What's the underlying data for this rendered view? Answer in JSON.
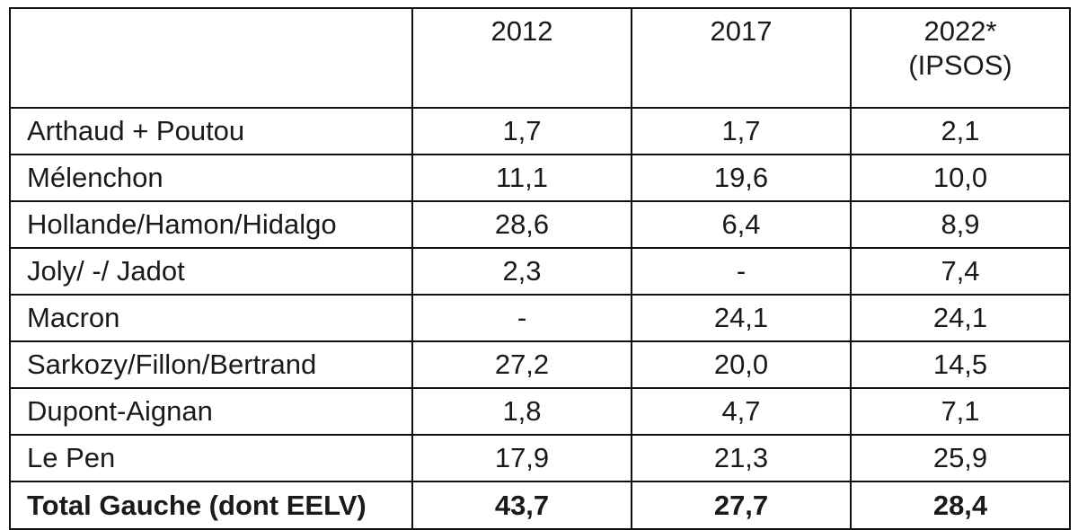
{
  "table": {
    "header": {
      "corner": "",
      "columns": [
        {
          "line1": "2012",
          "line2": ""
        },
        {
          "line1": "2017",
          "line2": ""
        },
        {
          "line1": "2022*",
          "line2": "(IPSOS)"
        }
      ]
    },
    "rows": [
      {
        "name": "Arthaud + Poutou",
        "values": [
          "1,7",
          "1,7",
          "2,1"
        ]
      },
      {
        "name": "Mélenchon",
        "values": [
          "11,1",
          "19,6",
          "10,0"
        ]
      },
      {
        "name": "Hollande/Hamon/Hidalgo",
        "values": [
          "28,6",
          "6,4",
          "8,9"
        ]
      },
      {
        "name": "Joly/ -/ Jadot",
        "values": [
          "2,3",
          "-",
          "7,4"
        ]
      },
      {
        "name": "Macron",
        "values": [
          "-",
          "24,1",
          "24,1"
        ]
      },
      {
        "name": "Sarkozy/Fillon/Bertrand",
        "values": [
          "27,2",
          "20,0",
          "14,5"
        ]
      },
      {
        "name": "Dupont-Aignan",
        "values": [
          "1,8",
          "4,7",
          "7,1"
        ]
      },
      {
        "name": "Le Pen",
        "values": [
          "17,9",
          "21,3",
          "25,9"
        ]
      }
    ],
    "total": {
      "name": "Total Gauche (dont EELV)",
      "values": [
        "43,7",
        "27,7",
        "28,4"
      ]
    }
  }
}
